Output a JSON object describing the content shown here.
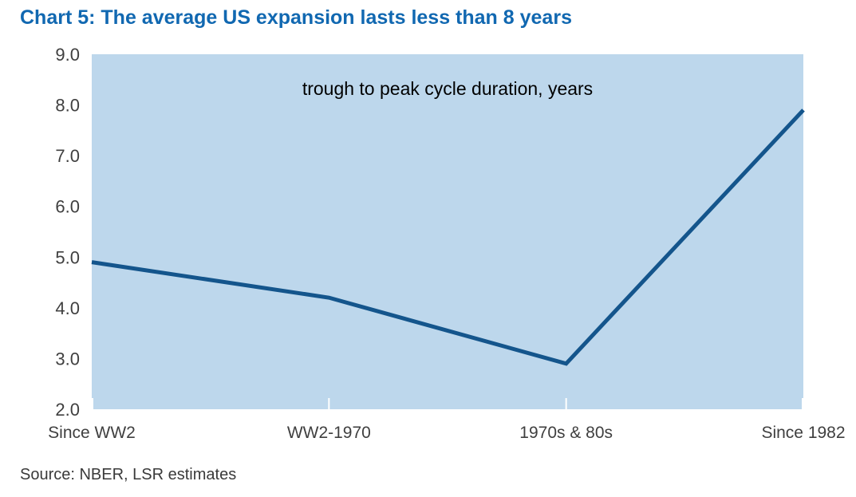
{
  "title": "Chart 5: The average US expansion lasts less than 8 years",
  "source": "Source: NBER, LSR estimates",
  "colors": {
    "title": "#1168b1",
    "plot_bg": "#bdd7ec",
    "line": "#14558c",
    "axis_text": "#3f3f3f",
    "annotation_text": "#000000",
    "tick": "#ffffff",
    "source_text": "#3a3a3a"
  },
  "chart_data": {
    "type": "line",
    "title": "Chart 5: The average US expansion lasts less than 8 years",
    "annotation": "trough to peak cycle duration, years",
    "categories": [
      "Since WW2",
      "WW2-1970",
      "1970s & 80s",
      "Since 1982"
    ],
    "values": [
      4.9,
      4.2,
      2.9,
      7.9
    ],
    "xlabel": "",
    "ylabel": "",
    "ylim": [
      2.0,
      9.0
    ],
    "ytick_step": 1.0,
    "ytick_decimals": 1,
    "grid": false,
    "legend": "none",
    "source": "Source: NBER, LSR estimates"
  }
}
